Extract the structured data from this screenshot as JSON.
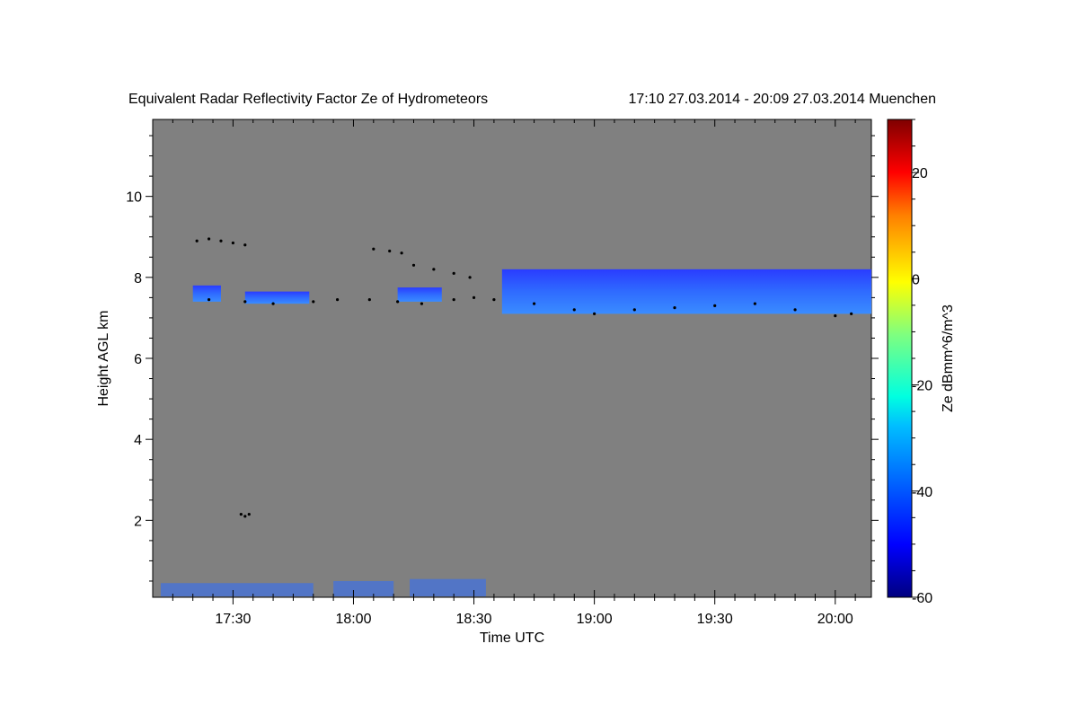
{
  "chart_data": {
    "type": "heatmap",
    "title": "Equivalent Radar Reflectivity Factor Ze of Hydrometeors",
    "subtitle": "17:10 27.03.2014 - 20:09 27.03.2014 Muenchen",
    "xlabel": "Time UTC",
    "ylabel": "Height AGL km",
    "xlim": [
      "17:10",
      "20:09"
    ],
    "ylim": [
      0.1,
      11.9
    ],
    "x_ticks": [
      "17:30",
      "18:00",
      "18:30",
      "19:00",
      "19:30",
      "20:00"
    ],
    "y_ticks": [
      "2",
      "4",
      "6",
      "8",
      "10"
    ],
    "colorbar": {
      "label": "Ze dBmm^6/m^3",
      "range": [
        -60,
        30
      ],
      "ticks": [
        "20",
        "0",
        "-20",
        "-40",
        "-60"
      ],
      "colormap": "jet"
    },
    "background_color": "#808080",
    "echo_layers": [
      {
        "name": "",
        "start": "17:20",
        "end": "17:27",
        "base_km": 7.4,
        "top_km": 7.8,
        "ze_dbz": -47
      },
      {
        "name": "",
        "start": "17:33",
        "end": "17:49",
        "base_km": 7.35,
        "top_km": 7.65,
        "ze_dbz": -46
      },
      {
        "name": "",
        "start": "18:11",
        "end": "18:22",
        "base_km": 7.4,
        "top_km": 7.75,
        "ze_dbz": -45
      },
      {
        "name": "",
        "start": "18:37",
        "end": "20:09",
        "base_km": 7.1,
        "top_km": 8.2,
        "ze_dbz": -40
      }
    ],
    "cloud_base_points": [
      [
        "17:21",
        8.9
      ],
      [
        "17:24",
        8.95
      ],
      [
        "17:27",
        8.9
      ],
      [
        "17:30",
        8.85
      ],
      [
        "17:33",
        8.8
      ],
      [
        "17:24",
        7.45
      ],
      [
        "17:33",
        7.4
      ],
      [
        "17:40",
        7.35
      ],
      [
        "17:50",
        7.4
      ],
      [
        "17:56",
        7.45
      ],
      [
        "18:04",
        7.45
      ],
      [
        "18:05",
        8.7
      ],
      [
        "18:09",
        8.65
      ],
      [
        "18:12",
        8.6
      ],
      [
        "18:15",
        8.3
      ],
      [
        "18:20",
        8.2
      ],
      [
        "18:25",
        8.1
      ],
      [
        "18:29",
        8.0
      ],
      [
        "18:11",
        7.4
      ],
      [
        "18:17",
        7.35
      ],
      [
        "18:25",
        7.45
      ],
      [
        "18:30",
        7.5
      ],
      [
        "18:35",
        7.45
      ],
      [
        "18:45",
        7.35
      ],
      [
        "18:55",
        7.2
      ],
      [
        "19:00",
        7.1
      ],
      [
        "19:10",
        7.2
      ],
      [
        "19:20",
        7.25
      ],
      [
        "19:30",
        7.3
      ],
      [
        "19:40",
        7.35
      ],
      [
        "19:50",
        7.2
      ],
      [
        "20:00",
        7.05
      ],
      [
        "20:04",
        7.1
      ],
      [
        "17:32",
        2.15
      ],
      [
        "17:33",
        2.1
      ],
      [
        "17:34",
        2.15
      ]
    ],
    "surface_clutter": [
      {
        "start": "17:12",
        "end": "17:50",
        "top_km": 0.45,
        "ze_dbz": -35
      },
      {
        "start": "17:55",
        "end": "18:10",
        "top_km": 0.5,
        "ze_dbz": -40
      },
      {
        "start": "18:14",
        "end": "18:33",
        "top_km": 0.55,
        "ze_dbz": -42
      }
    ]
  }
}
